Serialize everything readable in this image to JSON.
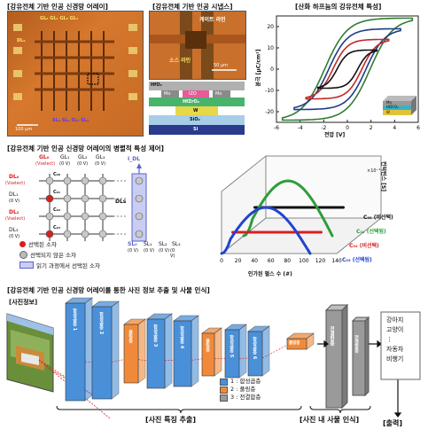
{
  "section1": {
    "title_array": "[강유전체 기반 인공 신경망 어레이]",
    "title_synapse": "[강유전체 기반 인공 시냅스]",
    "title_hzo": "[산화 하프늄의 강유전체 특성]",
    "array_top_labels": "GL₀ GL₁ GL₂ GL₃",
    "array_bottom_labels": "SL₀ SL₁ SL₂ SL₃",
    "array_left_label": "DL₀",
    "array_scale": "100 μm",
    "gate_line": "게이트 라인",
    "source_line": "소스 라인",
    "synapse_scale": "50 μm",
    "stack_layers": [
      "HfO₂",
      "Mo",
      "IZO",
      "Mo",
      "HfZrO₂",
      "W",
      "SiO₂",
      "Si"
    ],
    "hyst_inset_layers": [
      "Mo",
      "HfZrO₂",
      "W"
    ]
  },
  "hysteresis_chart": {
    "chart_data": {
      "type": "line",
      "xlabel": "전압 [V]",
      "ylabel": "분극 [μC/cm²]",
      "xlim": [
        -6,
        6
      ],
      "ylim": [
        -25,
        25
      ],
      "xticks": [
        "-6",
        "-4",
        "-2",
        "0",
        "2",
        "4",
        "6"
      ],
      "yticks": [
        "-20",
        "-10",
        "0",
        "10",
        "20"
      ],
      "series": [
        {
          "color": "#2e7d32",
          "vmax": 5.5,
          "pmax": 24,
          "ps": 14
        },
        {
          "color": "#1e3a8a",
          "vmax": 4.5,
          "pmax": 19,
          "ps": 11
        },
        {
          "color": "#c62828",
          "vmax": 3.5,
          "pmax": 14,
          "ps": 8
        },
        {
          "color": "#111111",
          "vmax": 2.5,
          "pmax": 9,
          "ps": 5
        }
      ]
    }
  },
  "section2": {
    "title": "[강유전체 기반 인공 신경망 어레이의 병렬적 특성 제어]",
    "gl_labels": [
      "GL₀",
      "GL₁",
      "GL₂",
      "GL₃"
    ],
    "gl_sub": [
      "(Vselect)",
      "(0 V)",
      "(0 V)",
      "(0 V)"
    ],
    "dl_labels": [
      "DL₀",
      "DL₁",
      "DL₂",
      "DL₃"
    ],
    "dl_sub": [
      "(Vselect)",
      "(0 V)",
      "(Vselect)",
      "(0 V)"
    ],
    "sl_labels": [
      "SL₀",
      "SL₁",
      "SL₂",
      "SL₃"
    ],
    "sl_sub": [
      "(0 V)",
      "(0 V)",
      "(0 V)",
      "(0 V)"
    ],
    "c00": "C₀₀",
    "c01": "C₀₁",
    "c02": "C₀₂",
    "c03": "C₀₃",
    "idl": "I_DL",
    "dls": "DLs",
    "legend": {
      "selected": "선택된 소자",
      "unselected": "선택되지 않은 소자",
      "read_selected": "읽기 과정에서 선택된 소자"
    }
  },
  "chart3d": {
    "chart_data": {
      "type": "line",
      "xlabel": "인가된 펄스 수 (#)",
      "ylabel": "컨덕턴스 [S]",
      "y_multiplier": "×10⁻⁴",
      "xticks": [
        "0",
        "20",
        "40",
        "60",
        "80",
        "100",
        "120",
        "140"
      ],
      "series": [
        {
          "name": "C₀₀ (비선택)",
          "color": "#111111",
          "shape": "flat"
        },
        {
          "name": "C₀₁ (선택됨)",
          "color": "#2e9d3a",
          "shape": "arch"
        },
        {
          "name": "C₀₂ (비선택)",
          "color": "#d62020",
          "shape": "flat"
        },
        {
          "name": "C₀₃ (선택됨)",
          "color": "#2244cc",
          "shape": "arch"
        }
      ]
    },
    "label_c00": "C₀₀ (비선택)",
    "label_c01": "C₀₁ (선택됨)",
    "label_c02": "C₀₂ (비선택)",
    "label_c03": "C₀₃ (선택됨)"
  },
  "section3": {
    "title": "[강유전체 기반 인공 신경망 어레이를 통한 사진 정보 추출 및 사물 인식]",
    "photo_label": "[사진정보]",
    "conv_layers": [
      "합성곱층 1",
      "합성곱층 2",
      "풀링층",
      "합성곱층 3",
      "합성곱층 4",
      "풀링층",
      "합성곱층 5",
      "합성곱층 6",
      "풀링층"
    ],
    "layer_legend": [
      "1 : 합성곱층",
      "2 : 풀링층",
      "3 : 전결합층"
    ],
    "fc_label1": "전결합층",
    "fc_label2": "전결합층",
    "classes": [
      "강아지",
      "고양이",
      "⋮",
      "자동차",
      "비행기"
    ],
    "bracket_feature": "[사진 특징 추출]",
    "bracket_recog": "[사진 내 사물 인식]",
    "bracket_output": "[출력]"
  }
}
